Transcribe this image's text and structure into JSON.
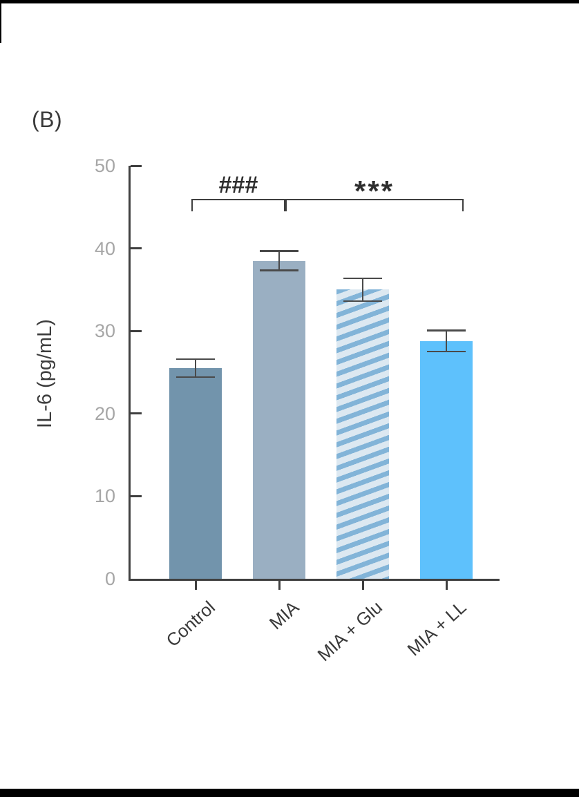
{
  "panel_label": "(B)",
  "chart_data": {
    "type": "bar",
    "title": "",
    "xlabel": "",
    "ylabel": "IL-6 (pg/mL)",
    "categories": [
      "Control",
      "MIA",
      "MIA + Glu",
      "MIA + LL"
    ],
    "values": [
      25.5,
      38.5,
      35.0,
      28.8
    ],
    "errors": [
      1.1,
      1.2,
      1.4,
      1.3
    ],
    "ylim": [
      0,
      50
    ],
    "yticks": [
      0,
      10,
      20,
      30,
      40,
      50
    ],
    "grid": false,
    "legend": "none",
    "bar_styles": [
      {
        "fill": "#7294AC",
        "pattern": "solid"
      },
      {
        "fill": "#9AAFC2",
        "pattern": "solid"
      },
      {
        "fill": "#DCE8F1",
        "pattern": "diagonal-stripes",
        "stripe_color": "#82B4D8"
      },
      {
        "fill": "#5EC1FC",
        "pattern": "solid"
      }
    ],
    "significance": [
      {
        "label": "###",
        "from": "Control",
        "to": "MIA"
      },
      {
        "label": "***",
        "from": "MIA",
        "to": "MIA + LL"
      }
    ]
  },
  "colors": {
    "background": "#FFFFFF",
    "frame_bars": "#000000",
    "axis": "#3F3F3F",
    "tick_labels": "#A6A6A6",
    "axis_title": "#3D3D3D",
    "panel_label": "#3A3A3A",
    "category_labels": "#3A3A3A",
    "error_bars": "#4A4A4A",
    "bracket": "#3F3F3F",
    "sig_text": "#2E2E2E"
  }
}
